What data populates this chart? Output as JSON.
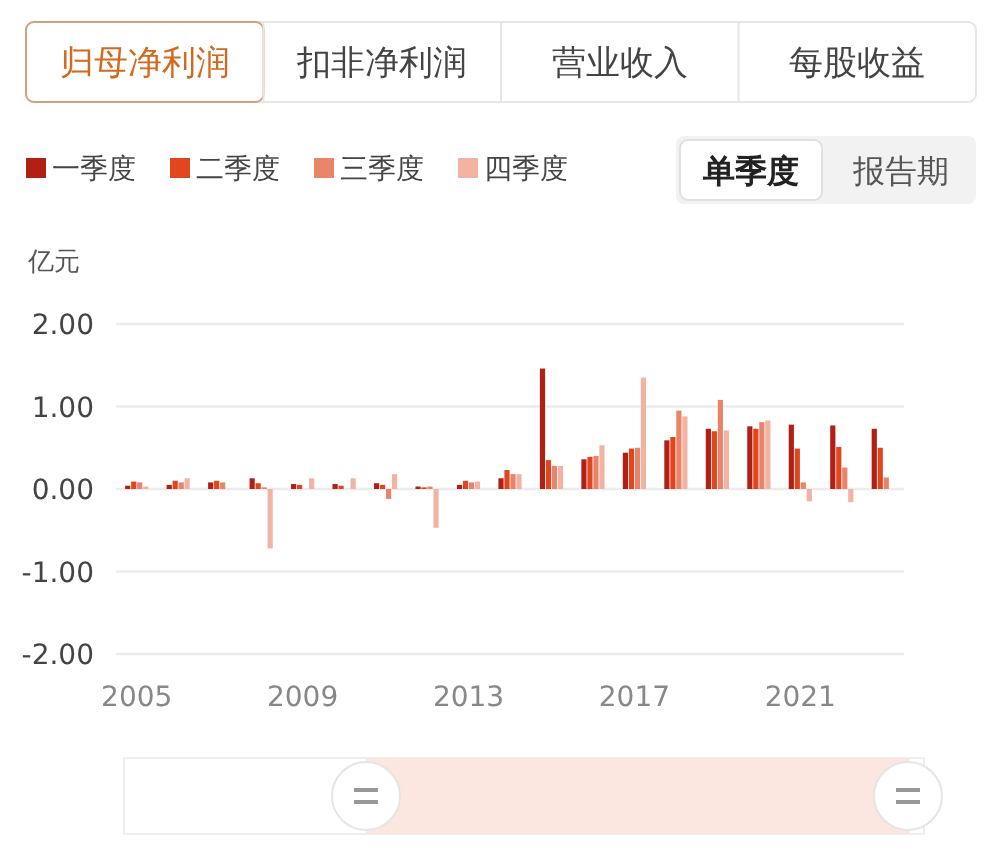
{
  "chart_data": {
    "type": "bar",
    "ylabel": "亿元",
    "x": [
      2005,
      2006,
      2007,
      2008,
      2009,
      2010,
      2011,
      2012,
      2013,
      2014,
      2015,
      2016,
      2017,
      2018,
      2019,
      2020,
      2021,
      2022,
      2023
    ],
    "xlim": [
      2004.5,
      2023.5
    ],
    "xticks": [
      2005,
      2009,
      2013,
      2017,
      2021
    ],
    "ylim": [
      -2,
      2
    ],
    "yticks": [
      {
        "value": -2,
        "label": "-2.00"
      },
      {
        "value": -1,
        "label": "-1.00"
      },
      {
        "value": 0,
        "label": "0.00"
      },
      {
        "value": 1,
        "label": "1.00"
      },
      {
        "value": 2,
        "label": "2.00"
      }
    ],
    "grid": "y",
    "legend": "top left",
    "annotations": [
      "归母净利润",
      "扣非净利润",
      "营业收入",
      "每股收益",
      "单季度",
      "报告期"
    ],
    "series": [
      {
        "name": "一季度",
        "color": "#b22015",
        "values": [
          0.04,
          0.05,
          0.08,
          0.13,
          0.06,
          0.06,
          0.07,
          0.03,
          0.05,
          0.13,
          1.46,
          0.36,
          0.44,
          0.59,
          0.73,
          0.76,
          0.78,
          0.77,
          0.73
        ]
      },
      {
        "name": "二季度",
        "color": "#e0471f",
        "values": [
          0.09,
          0.1,
          0.1,
          0.07,
          0.05,
          0.04,
          0.05,
          0.02,
          0.1,
          0.23,
          0.35,
          0.39,
          0.49,
          0.63,
          0.7,
          0.73,
          0.49,
          0.51,
          0.5
        ]
      },
      {
        "name": "三季度",
        "color": "#e8846a",
        "values": [
          0.08,
          0.08,
          0.08,
          0.02,
          null,
          null,
          -0.12,
          0.03,
          0.08,
          0.18,
          0.28,
          0.4,
          0.5,
          0.95,
          1.08,
          0.81,
          0.08,
          0.26,
          0.14
        ]
      },
      {
        "name": "四季度",
        "color": "#f2b3a3",
        "values": [
          0.03,
          0.13,
          null,
          -0.72,
          0.13,
          0.13,
          0.18,
          -0.47,
          0.09,
          0.18,
          0.28,
          0.53,
          1.35,
          0.88,
          0.71,
          0.83,
          -0.15,
          -0.16,
          null
        ]
      }
    ]
  }
}
